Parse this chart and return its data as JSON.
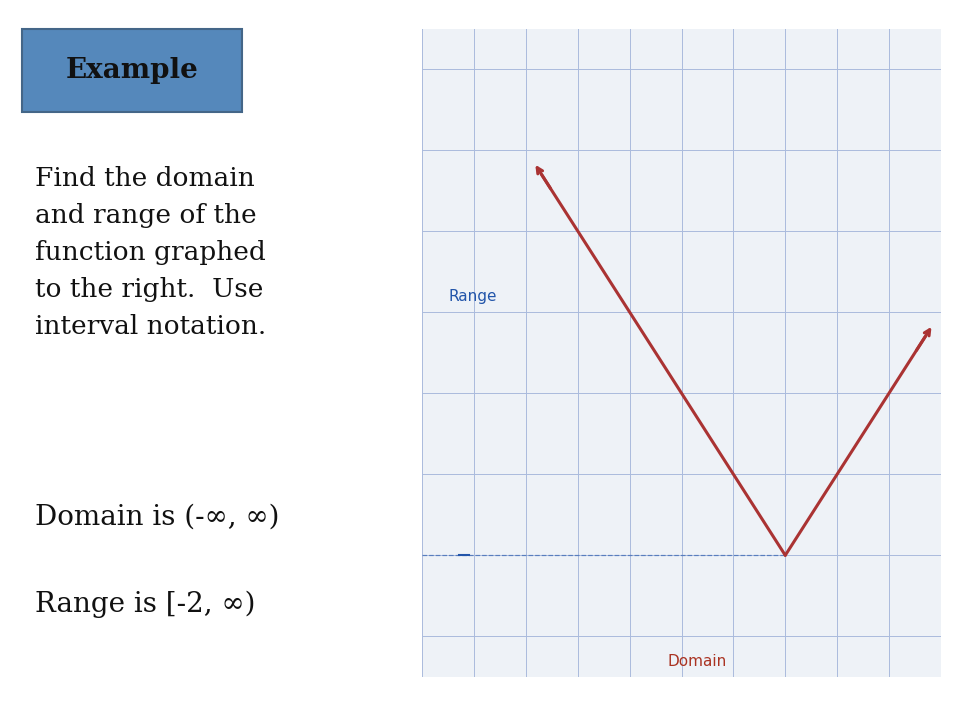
{
  "background_color": "#ffffff",
  "example_box_color": "#5588bb",
  "example_text": "Example",
  "problem_text": "Find the domain\nand range of the\nfunction graphed\nto the right.  Use\ninterval notation.",
  "domain_answer": "Domain is (-∞, ∞)",
  "range_answer": "Range is [-2, ∞)",
  "graph_bg": "#eef2f7",
  "axis_color": "#2255aa",
  "grid_color": "#aabbdd",
  "curve_color": "#aa3333",
  "range_label_color": "#2255aa",
  "domain_label_color": "#aa3322",
  "range_arrow_color": "#2255aa",
  "domain_arrow_color": "#aa3322",
  "xlim": [
    -5,
    5
  ],
  "ylim": [
    -3.5,
    4.5
  ]
}
